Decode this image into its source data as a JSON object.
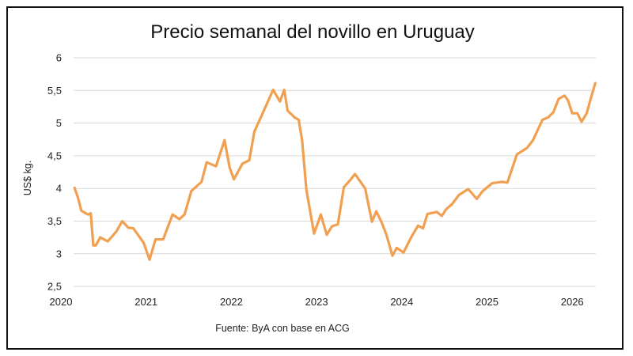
{
  "chart_data": {
    "type": "line",
    "title": "Precio semanal del novillo en Uruguay",
    "ylabel": "US$ kg.",
    "xlabel": "",
    "footer": "Fuente: ByA con base en ACG",
    "ylim": [
      2.5,
      6
    ],
    "xlim": [
      2020,
      2026.3
    ],
    "yticks": [
      "2,5",
      "3",
      "3,5",
      "4",
      "4,5",
      "5",
      "5,5",
      "6"
    ],
    "ytick_values": [
      2.5,
      3,
      3.5,
      4,
      4.5,
      5,
      5.5,
      6
    ],
    "xticks": [
      "2020",
      "2021",
      "2022",
      "2023",
      "2024",
      "2025",
      "2026"
    ],
    "grid": "horizontal",
    "color": "#F0A050",
    "series": [
      {
        "x": [
          2020.16,
          2020.2,
          2020.24,
          2020.29,
          2020.32,
          2020.35,
          2020.38,
          2020.41,
          2020.46,
          2020.55,
          2020.65,
          2020.72,
          2020.79,
          2020.85,
          2020.97,
          2021.04,
          2021.11,
          2021.2,
          2021.31,
          2021.39,
          2021.45,
          2021.53,
          2021.65,
          2021.71,
          2021.82,
          2021.92,
          2021.98,
          2022.03,
          2022.13,
          2022.21,
          2022.27,
          2022.36,
          2022.49,
          2022.57,
          2022.62,
          2022.66,
          2022.74,
          2022.79,
          2022.83,
          2022.88,
          2022.97,
          2023.05,
          2023.12,
          2023.18,
          2023.25,
          2023.32,
          2023.39,
          2023.45,
          2023.57,
          2023.65,
          2023.7,
          2023.76,
          2023.82,
          2023.89,
          2023.94,
          2024.02,
          2024.11,
          2024.19,
          2024.25,
          2024.3,
          2024.41,
          2024.47,
          2024.52,
          2024.59,
          2024.67,
          2024.78,
          2024.88,
          2024.95,
          2025.06,
          2025.17,
          2025.24,
          2025.35,
          2025.47,
          2025.54,
          2025.65,
          2025.72,
          2025.78,
          2025.84,
          2025.91,
          2025.95,
          2026.0,
          2026.06,
          2026.11,
          2026.17,
          2026.22,
          2026.27
        ],
        "y": [
          4.01,
          3.86,
          3.66,
          3.62,
          3.6,
          3.62,
          3.13,
          3.13,
          3.25,
          3.19,
          3.34,
          3.5,
          3.4,
          3.39,
          3.17,
          2.91,
          3.22,
          3.22,
          3.6,
          3.53,
          3.6,
          3.96,
          4.1,
          4.4,
          4.34,
          4.74,
          4.32,
          4.14,
          4.38,
          4.43,
          4.87,
          5.13,
          5.51,
          5.33,
          5.51,
          5.19,
          5.09,
          5.05,
          4.74,
          3.98,
          3.31,
          3.6,
          3.29,
          3.42,
          3.45,
          4.02,
          4.12,
          4.22,
          4.0,
          3.49,
          3.65,
          3.49,
          3.29,
          2.97,
          3.09,
          3.02,
          3.25,
          3.43,
          3.39,
          3.61,
          3.64,
          3.58,
          3.68,
          3.76,
          3.9,
          3.99,
          3.84,
          3.96,
          4.08,
          4.1,
          4.09,
          4.52,
          4.62,
          4.74,
          5.05,
          5.09,
          5.17,
          5.37,
          5.42,
          5.35,
          5.15,
          5.15,
          5.02,
          5.15,
          5.39,
          5.61
        ]
      }
    ]
  }
}
